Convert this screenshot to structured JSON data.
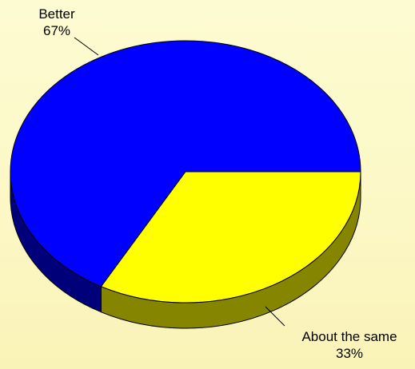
{
  "chart_data": {
    "type": "pie",
    "title": "",
    "three_d": true,
    "slices": [
      {
        "label": "Better",
        "value": 67,
        "value_label": "67%",
        "color": "#0000ff",
        "side_color": "#00007a"
      },
      {
        "label": "About the same",
        "value": 33,
        "value_label": "33%",
        "color": "#ffff00",
        "side_color": "#858500"
      }
    ],
    "colors": {
      "outline": "#000000"
    }
  }
}
